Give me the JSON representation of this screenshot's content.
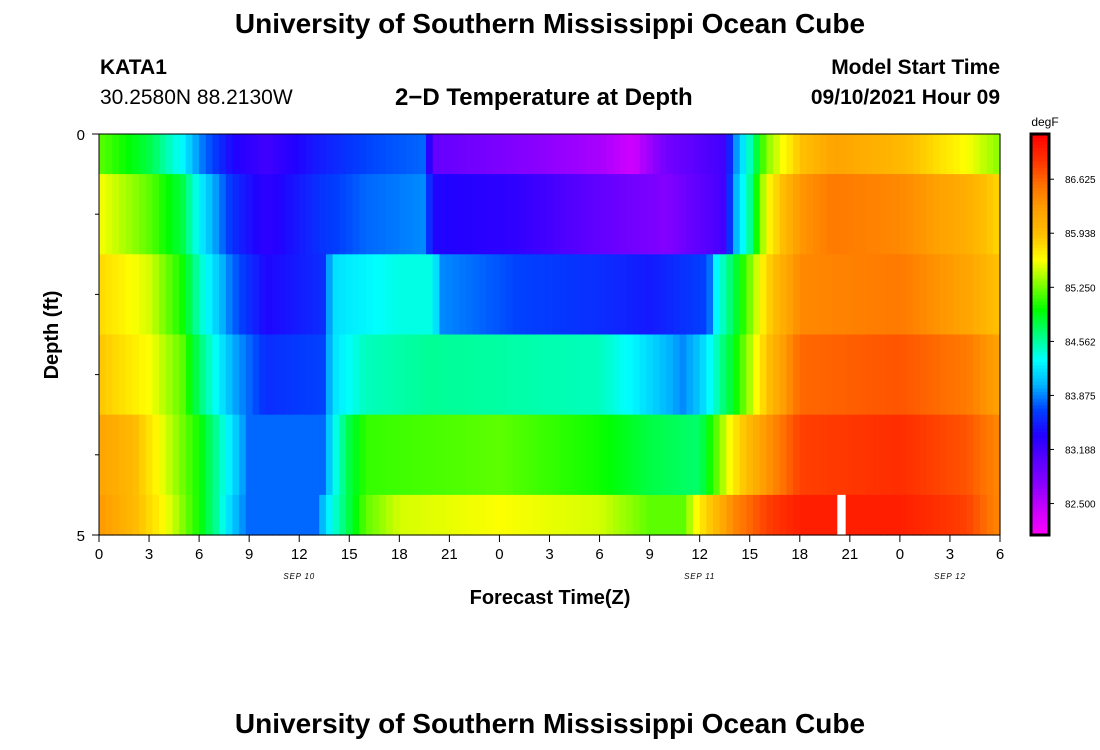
{
  "page": {
    "title": "University of Southern Mississippi Ocean Cube",
    "footer_title": "University of Southern Mississippi Ocean Cube"
  },
  "station": {
    "id": "KATA1",
    "coords": "30.2580N  88.2130W"
  },
  "plot_title": "2−D Temperature at Depth",
  "model_start": {
    "label": "Model Start Time",
    "value": "09/10/2021 Hour 09"
  },
  "colors": {
    "scale": [
      "#ff00ff",
      "#cc00ff",
      "#8c00ff",
      "#5a00ff",
      "#2200ff",
      "#0040ff",
      "#00b4ff",
      "#00ffff",
      "#00ff80",
      "#00ff00",
      "#80ff00",
      "#ffff00",
      "#ffc000",
      "#ffa000",
      "#ff7000",
      "#ff3000",
      "#ff0000"
    ],
    "missing": "#ffffff"
  },
  "chart_data": {
    "type": "heatmap",
    "xlabel": "Forecast Time(Z)",
    "ylabel": "Depth (ft)",
    "x_hours_range": [
      0,
      45
    ],
    "x_ticks": [
      {
        "hour": 0,
        "label": "0"
      },
      {
        "hour": 3,
        "label": "3"
      },
      {
        "hour": 6,
        "label": "6"
      },
      {
        "hour": 9,
        "label": "9"
      },
      {
        "hour": 12,
        "label": "12"
      },
      {
        "hour": 15,
        "label": "15"
      },
      {
        "hour": 18,
        "label": "18"
      },
      {
        "hour": 21,
        "label": "21"
      },
      {
        "hour": 24,
        "label": "0"
      },
      {
        "hour": 27,
        "label": "3"
      },
      {
        "hour": 30,
        "label": "6"
      },
      {
        "hour": 33,
        "label": "9"
      },
      {
        "hour": 36,
        "label": "12"
      },
      {
        "hour": 39,
        "label": "15"
      },
      {
        "hour": 42,
        "label": "18"
      },
      {
        "hour": 45,
        "label": "21"
      },
      {
        "hour": 48,
        "label": "0"
      },
      {
        "hour": 51,
        "label": "3"
      },
      {
        "hour": 54,
        "label": "6"
      }
    ],
    "date_labels": [
      {
        "hour": 12,
        "label": "SEP 10"
      },
      {
        "hour": 36,
        "label": "SEP 11"
      },
      {
        "hour": 51,
        "label": "SEP 12"
      }
    ],
    "xlim_axis": [
      0,
      54
    ],
    "ylim": [
      0,
      5
    ],
    "y_tick_labels": [
      {
        "depth": 0,
        "label": "0"
      },
      {
        "depth": 5,
        "label": "5"
      }
    ],
    "y_minor_ticks": [
      1,
      2,
      3,
      4
    ],
    "colorbar": {
      "unit": "degF",
      "min": 82.1,
      "max": 87.2,
      "ticks": [
        "82.500",
        "83.188",
        "83.875",
        "84.562",
        "85.250",
        "85.938",
        "86.625"
      ]
    },
    "missing_cell": {
      "depth_row": 5,
      "hour": 44.5
    },
    "rows": [
      {
        "depth": 0.25,
        "anchors": [
          [
            0,
            85.2
          ],
          [
            3,
            84.8
          ],
          [
            5,
            84.3
          ],
          [
            6,
            83.9
          ],
          [
            8,
            83.4
          ],
          [
            10,
            83.2
          ],
          [
            13,
            83.5
          ],
          [
            16,
            83.7
          ],
          [
            19.5,
            83.8
          ],
          [
            20,
            83.0
          ],
          [
            25,
            82.8
          ],
          [
            30,
            82.6
          ],
          [
            32,
            82.4
          ],
          [
            34,
            82.9
          ],
          [
            37.5,
            83.2
          ],
          [
            38,
            83.8
          ],
          [
            39,
            84.5
          ],
          [
            40,
            85.3
          ],
          [
            42,
            85.9
          ],
          [
            44,
            86.2
          ],
          [
            48,
            86.0
          ],
          [
            52,
            85.6
          ],
          [
            54,
            85.3
          ]
        ]
      },
      {
        "depth": 0.75,
        "anchors": [
          [
            0,
            85.6
          ],
          [
            3,
            85.2
          ],
          [
            5,
            84.8
          ],
          [
            6,
            84.3
          ],
          [
            8,
            83.6
          ],
          [
            10,
            83.3
          ],
          [
            13,
            83.6
          ],
          [
            16,
            83.8
          ],
          [
            19.5,
            83.9
          ],
          [
            20,
            83.4
          ],
          [
            25,
            83.3
          ],
          [
            30,
            83.0
          ],
          [
            34,
            82.8
          ],
          [
            37.5,
            83.2
          ],
          [
            38,
            83.9
          ],
          [
            39,
            84.6
          ],
          [
            40,
            85.6
          ],
          [
            42,
            86.3
          ],
          [
            44,
            86.5
          ],
          [
            48,
            86.4
          ],
          [
            52,
            86.1
          ],
          [
            54,
            85.8
          ]
        ]
      },
      {
        "depth": 1.75,
        "anchors": [
          [
            0,
            85.8
          ],
          [
            3,
            85.5
          ],
          [
            5,
            85.0
          ],
          [
            6,
            84.5
          ],
          [
            8,
            83.8
          ],
          [
            10,
            83.4
          ],
          [
            13.5,
            83.6
          ],
          [
            14,
            84.2
          ],
          [
            18,
            84.4
          ],
          [
            20,
            84.4
          ],
          [
            20.5,
            83.9
          ],
          [
            25,
            83.7
          ],
          [
            30,
            83.6
          ],
          [
            33,
            83.5
          ],
          [
            36.5,
            83.7
          ],
          [
            37,
            84.3
          ],
          [
            38.5,
            85.0
          ],
          [
            40,
            85.8
          ],
          [
            42,
            86.4
          ],
          [
            48,
            86.5
          ],
          [
            52,
            86.2
          ],
          [
            54,
            85.9
          ]
        ]
      },
      {
        "depth": 2.75,
        "anchors": [
          [
            0,
            85.9
          ],
          [
            3,
            85.6
          ],
          [
            5,
            85.2
          ],
          [
            6,
            84.7
          ],
          [
            8,
            84.0
          ],
          [
            10,
            83.6
          ],
          [
            13.5,
            83.7
          ],
          [
            14,
            84.2
          ],
          [
            16,
            84.5
          ],
          [
            20,
            84.6
          ],
          [
            30,
            84.5
          ],
          [
            32,
            84.3
          ],
          [
            35,
            83.9
          ],
          [
            36,
            84.1
          ],
          [
            38,
            84.9
          ],
          [
            40,
            85.9
          ],
          [
            42,
            86.6
          ],
          [
            48,
            86.7
          ],
          [
            52,
            86.5
          ],
          [
            54,
            86.2
          ]
        ]
      },
      {
        "depth": 3.75,
        "anchors": [
          [
            0,
            86.2
          ],
          [
            2,
            86.0
          ],
          [
            4,
            85.5
          ],
          [
            6,
            85.0
          ],
          [
            8,
            84.2
          ],
          [
            9,
            83.8
          ],
          [
            13.5,
            83.8
          ],
          [
            14,
            84.3
          ],
          [
            15,
            84.8
          ],
          [
            16,
            85.1
          ],
          [
            24,
            85.2
          ],
          [
            30,
            85.0
          ],
          [
            33,
            84.8
          ],
          [
            36,
            84.7
          ],
          [
            37,
            85.2
          ],
          [
            38,
            85.7
          ],
          [
            40,
            86.3
          ],
          [
            42,
            86.8
          ],
          [
            48,
            86.9
          ],
          [
            52,
            86.7
          ],
          [
            54,
            86.4
          ]
        ]
      },
      {
        "depth": 4.5,
        "anchors": [
          [
            0,
            86.3
          ],
          [
            2,
            86.0
          ],
          [
            4,
            85.6
          ],
          [
            6,
            85.0
          ],
          [
            7,
            84.6
          ],
          [
            8,
            84.1
          ],
          [
            9,
            83.8
          ],
          [
            13,
            83.8
          ],
          [
            14,
            84.4
          ],
          [
            15,
            84.8
          ],
          [
            16,
            85.2
          ],
          [
            18,
            85.5
          ],
          [
            24,
            85.6
          ],
          [
            30,
            85.5
          ],
          [
            33,
            85.2
          ],
          [
            35,
            85.2
          ],
          [
            36,
            85.7
          ],
          [
            37,
            86.0
          ],
          [
            38,
            86.4
          ],
          [
            40,
            86.8
          ],
          [
            42,
            87.0
          ],
          [
            48,
            87.0
          ],
          [
            52,
            86.8
          ],
          [
            54,
            86.4
          ]
        ]
      }
    ]
  }
}
